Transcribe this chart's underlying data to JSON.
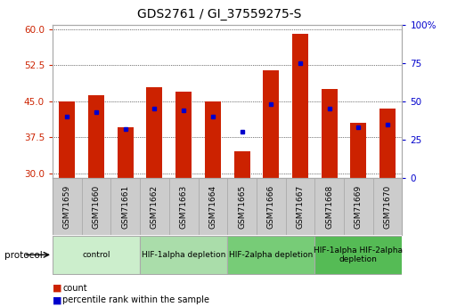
{
  "title": "GDS2761 / GI_37559275-S",
  "samples": [
    "GSM71659",
    "GSM71660",
    "GSM71661",
    "GSM71662",
    "GSM71663",
    "GSM71664",
    "GSM71665",
    "GSM71666",
    "GSM71667",
    "GSM71668",
    "GSM71669",
    "GSM71670"
  ],
  "counts": [
    45.0,
    46.2,
    39.5,
    48.0,
    47.0,
    45.0,
    34.5,
    51.5,
    59.0,
    47.5,
    40.5,
    43.5
  ],
  "percentiles": [
    40,
    43,
    32,
    45,
    44,
    40,
    30,
    48,
    75,
    45,
    33,
    35
  ],
  "bar_color": "#cc2200",
  "dot_color": "#0000cc",
  "ylim_left": [
    29,
    61
  ],
  "ylim_right": [
    0,
    100
  ],
  "yticks_left": [
    30,
    37.5,
    45,
    52.5,
    60
  ],
  "yticks_right": [
    0,
    25,
    50,
    75,
    100
  ],
  "grid_color": "#000000",
  "bar_width": 0.55,
  "protocol_groups": [
    {
      "label": "control",
      "start": 0,
      "end": 2,
      "color": "#cceecc"
    },
    {
      "label": "HIF-1alpha depletion",
      "start": 3,
      "end": 5,
      "color": "#aaddaa"
    },
    {
      "label": "HIF-2alpha depletion",
      "start": 6,
      "end": 8,
      "color": "#77cc77"
    },
    {
      "label": "HIF-1alpha HIF-2alpha\ndepletion",
      "start": 9,
      "end": 11,
      "color": "#55bb55"
    }
  ],
  "ylabel_left_color": "#cc2200",
  "ylabel_right_color": "#0000cc",
  "bg_color": "#ffffff",
  "tick_area_color": "#cccccc",
  "legend_items": [
    {
      "label": "count",
      "color": "#cc2200"
    },
    {
      "label": "percentile rank within the sample",
      "color": "#0000cc"
    }
  ]
}
